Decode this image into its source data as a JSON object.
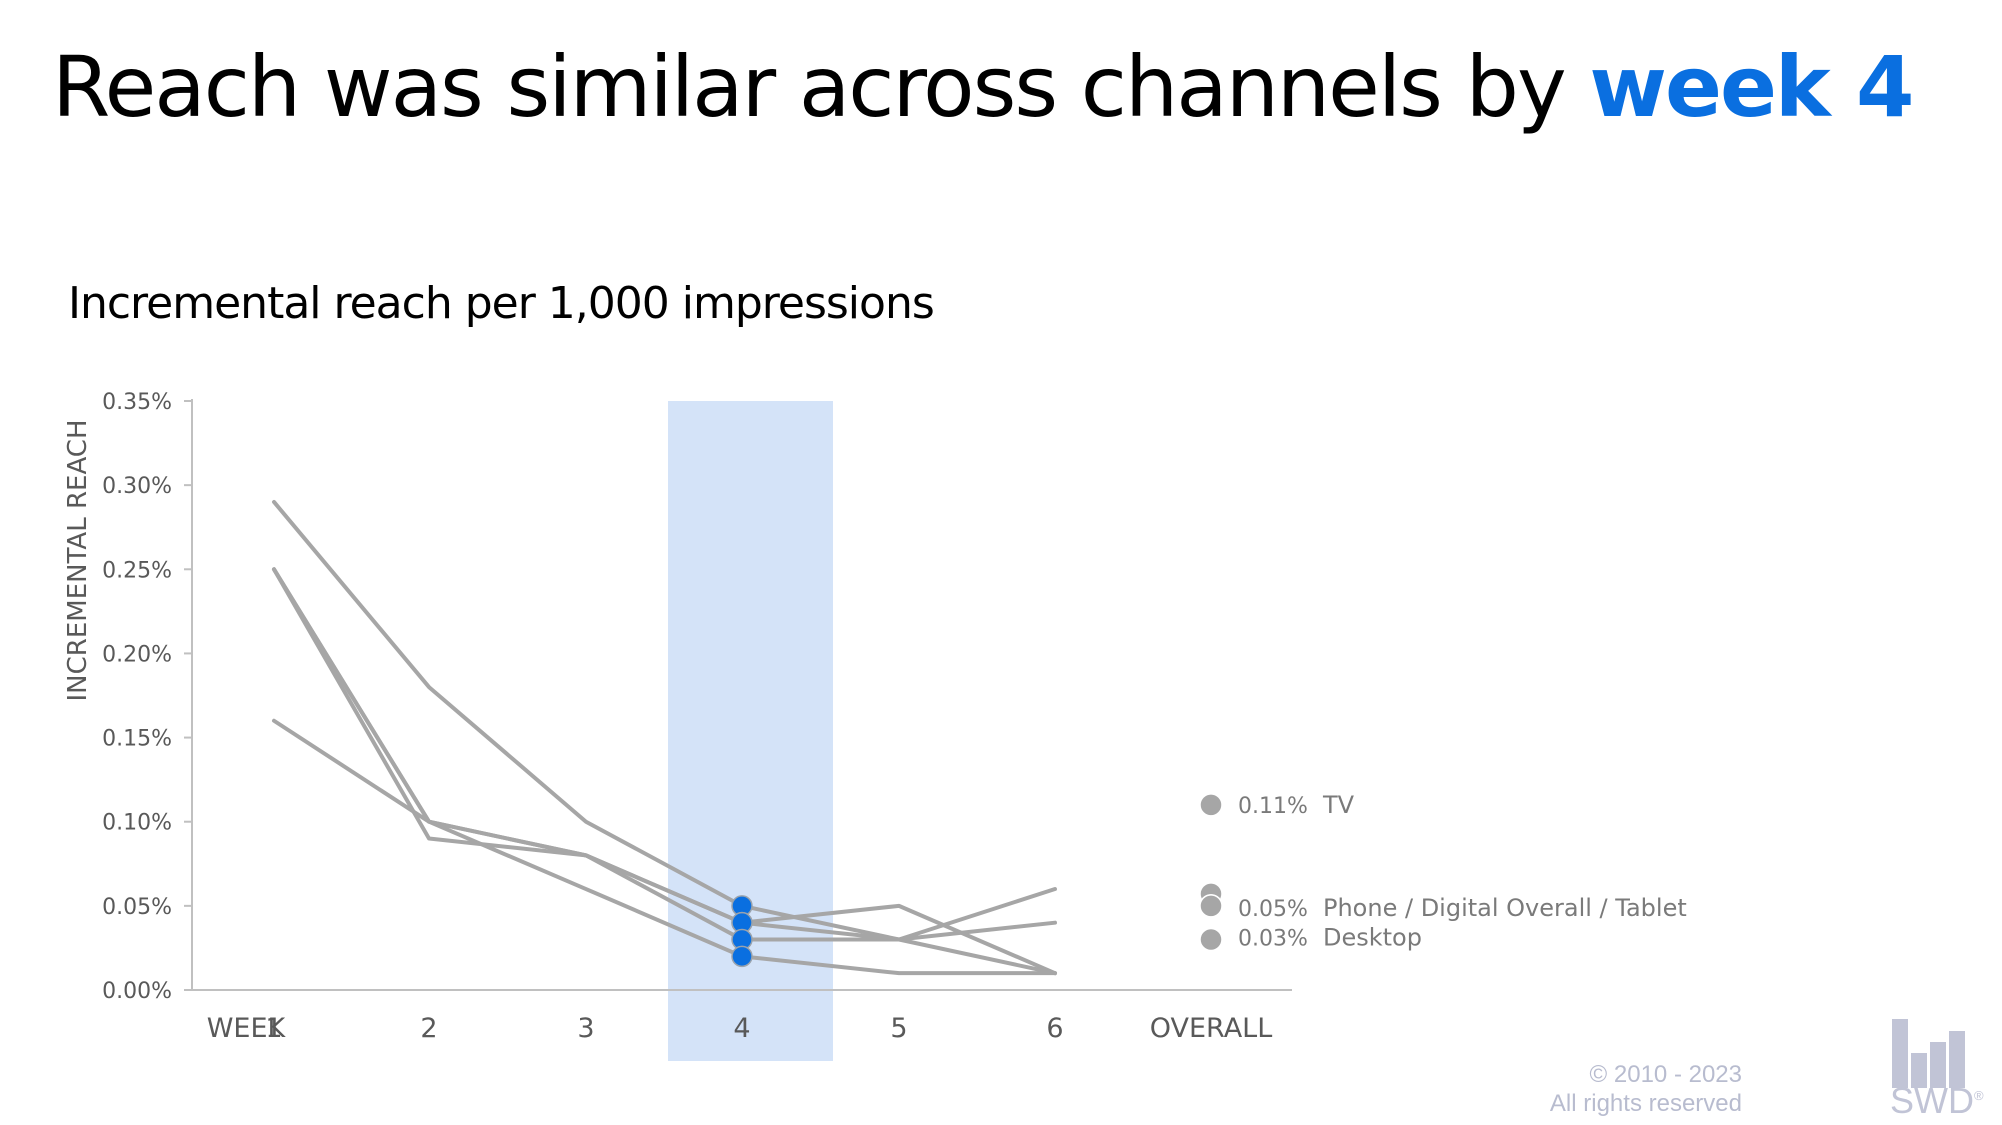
{
  "title": {
    "prefix": "Reach was similar across channels by ",
    "highlight": "week 4",
    "highlight_color": "#0a6fe0"
  },
  "subtitle": "Incremental reach per 1,000 impressions",
  "footer": {
    "copyright": "© 2010 - 2023",
    "rights": "All rights reserved",
    "logo_text": "SWD",
    "logo_mark": "®"
  },
  "colors": {
    "line": "#a6a6a6",
    "axis": "#c0c0c0",
    "highlight_band": "#d4e3f8",
    "highlight_dot": "#0a6fe0",
    "tick_text": "#595959",
    "overall_dot": "#a6a6a6"
  },
  "chart_data": {
    "type": "line",
    "title": "Incremental reach per 1,000 impressions",
    "xlabel": "",
    "ylabel": "INCREMENTAL REACH",
    "categories": [
      "WEEK 1",
      "2",
      "3",
      "4",
      "5",
      "6"
    ],
    "x_tick_labels": [
      "WEEK",
      "1",
      "2",
      "3",
      "4",
      "5",
      "6",
      "OVERALL"
    ],
    "ylim": [
      0,
      0.35
    ],
    "y_ticks": [
      "0.00%",
      "0.05%",
      "0.10%",
      "0.15%",
      "0.20%",
      "0.25%",
      "0.30%",
      "0.35%"
    ],
    "highlight_category": "4",
    "grid": false,
    "legend": "direct labels at OVERALL",
    "series": [
      {
        "name": "TV",
        "values": [
          0.29,
          0.18,
          0.1,
          0.05,
          0.03,
          0.01
        ],
        "overall": 0.11
      },
      {
        "name": "Phone",
        "values": [
          0.25,
          0.1,
          0.08,
          0.04,
          0.05,
          0.01
        ],
        "overall": 0.05
      },
      {
        "name": "Digital Overall",
        "values": [
          0.25,
          0.1,
          0.08,
          0.04,
          0.03,
          0.06
        ],
        "overall": 0.05
      },
      {
        "name": "Tablet",
        "values": [
          0.25,
          0.09,
          0.08,
          0.03,
          0.03,
          0.04
        ],
        "overall": 0.05
      },
      {
        "name": "Desktop",
        "values": [
          0.16,
          0.1,
          0.06,
          0.02,
          0.01,
          0.01
        ],
        "overall": 0.03
      }
    ],
    "overall_labels": [
      {
        "value_label": "0.11%",
        "name": "TV",
        "value": 0.11
      },
      {
        "value_label": "0.05%",
        "name": "Phone / Digital Overall / Tablet",
        "value": 0.05
      },
      {
        "value_label": "0.03%",
        "name": "Desktop",
        "value": 0.03
      }
    ]
  }
}
